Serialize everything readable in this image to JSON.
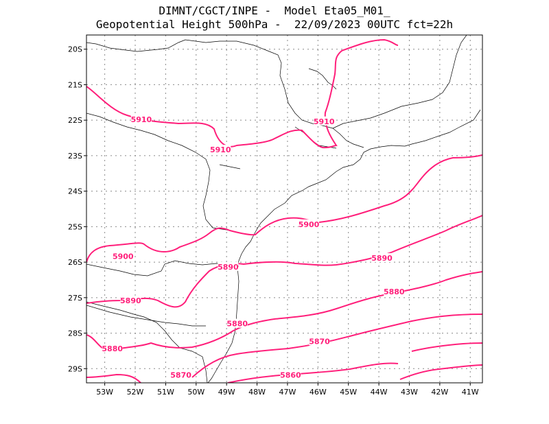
{
  "header": {
    "line1": "DIMNT/CGCT/INPE -  Model Eta05_M01_",
    "line2": "Geopotential Height 500hPa -  22/09/2023 00UTC fct=22h"
  },
  "map": {
    "lon_range": [
      -53.6,
      -40.6
    ],
    "lat_range": [
      -29.4,
      -19.6
    ],
    "gridlines": true,
    "contour_color": "#ff1e7a",
    "boundary_color": "#000000",
    "lat_ticks": [
      "20S",
      "21S",
      "22S",
      "23S",
      "24S",
      "25S",
      "26S",
      "27S",
      "28S",
      "29S"
    ],
    "lon_ticks": [
      "53W",
      "52W",
      "51W",
      "50W",
      "49W",
      "48W",
      "47W",
      "46W",
      "45W",
      "44W",
      "43W",
      "42W",
      "41W"
    ],
    "contour_labels": [
      {
        "text": "5910",
        "lon": -51.8,
        "lat": -22.0
      },
      {
        "text": "5910",
        "lon": -45.8,
        "lat": -22.05
      },
      {
        "text": "5910",
        "lon": -49.2,
        "lat": -22.85
      },
      {
        "text": "5900",
        "lon": -46.3,
        "lat": -24.95
      },
      {
        "text": "5900",
        "lon": -52.4,
        "lat": -25.85
      },
      {
        "text": "5890",
        "lon": -48.95,
        "lat": -26.15
      },
      {
        "text": "5890",
        "lon": -43.9,
        "lat": -25.9
      },
      {
        "text": "5890",
        "lon": -52.15,
        "lat": -27.1
      },
      {
        "text": "5880",
        "lon": -43.5,
        "lat": -26.85
      },
      {
        "text": "5880",
        "lon": -48.65,
        "lat": -27.75
      },
      {
        "text": "5880",
        "lon": -52.75,
        "lat": -28.45
      },
      {
        "text": "5870",
        "lon": -45.95,
        "lat": -28.25
      },
      {
        "text": "5870",
        "lon": -50.5,
        "lat": -29.2
      },
      {
        "text": "5860",
        "lon": -46.9,
        "lat": -29.2
      }
    ]
  }
}
